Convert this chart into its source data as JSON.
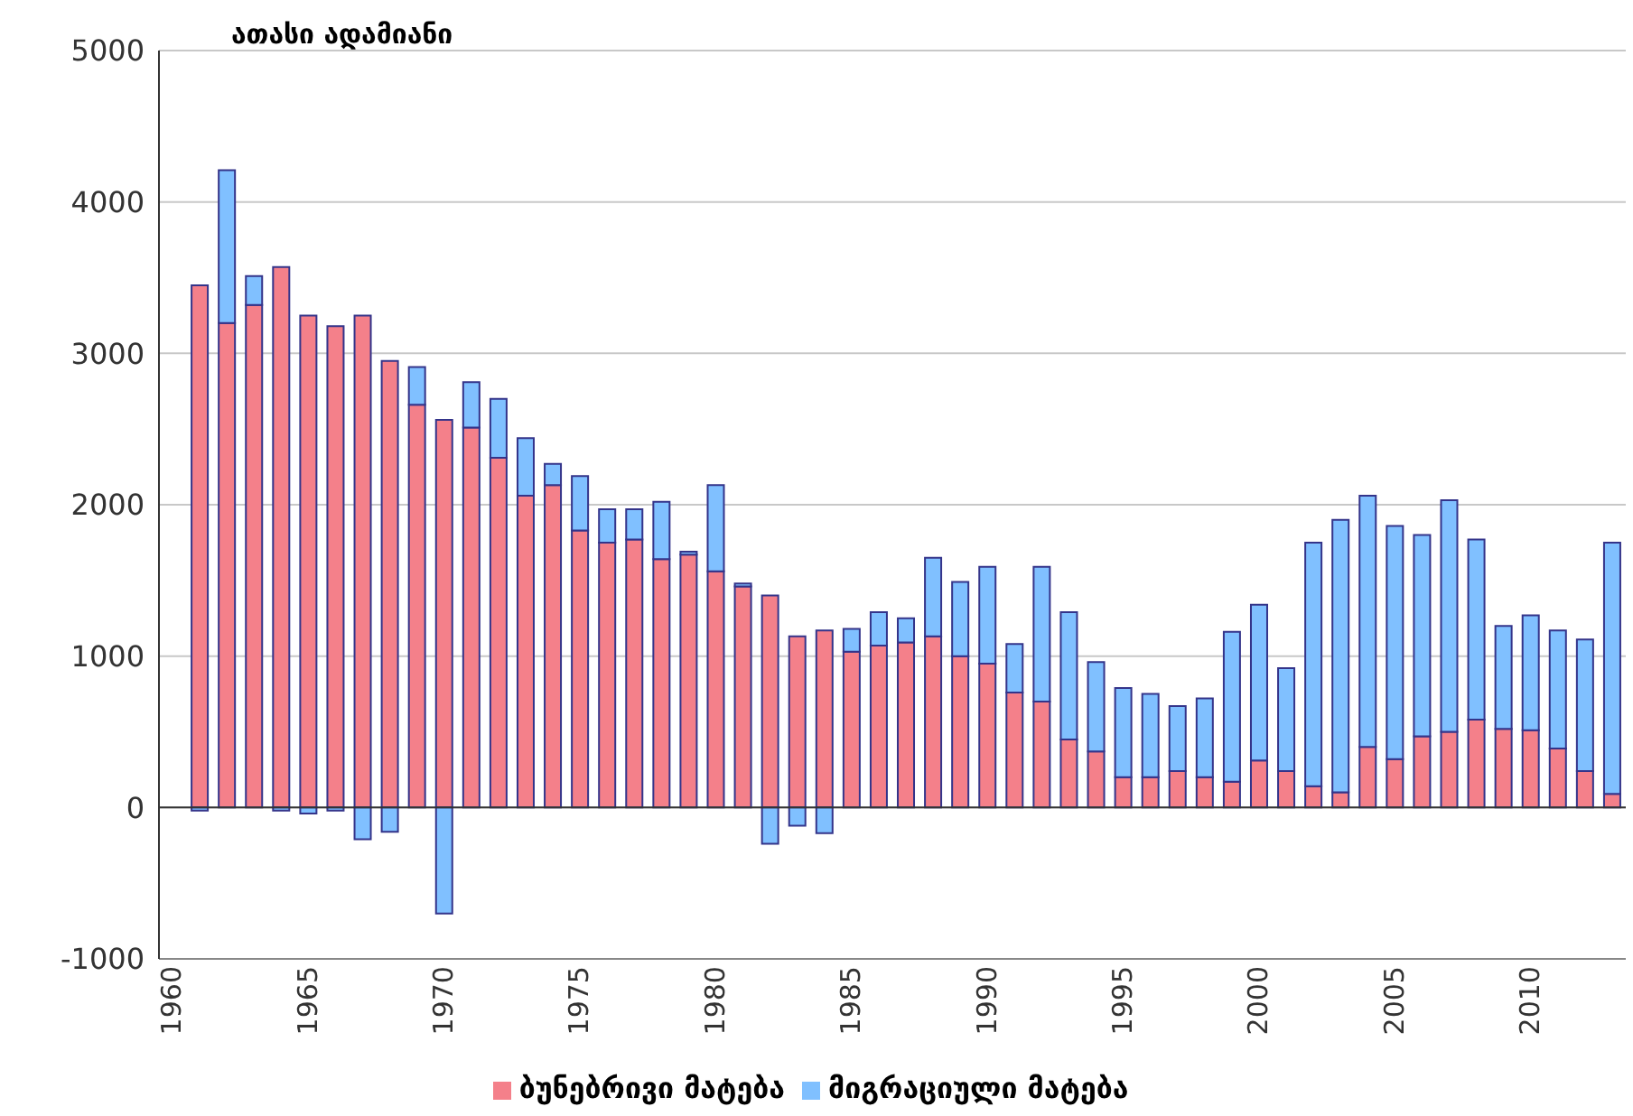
{
  "chart_data": {
    "type": "bar",
    "stacked": true,
    "ylabel": "ათასი ადამიანი",
    "categories": [
      "1960",
      null,
      null,
      null,
      null,
      "1965",
      null,
      null,
      null,
      null,
      "1970",
      null,
      null,
      null,
      null,
      "1975",
      null,
      null,
      null,
      null,
      "1980",
      null,
      null,
      null,
      null,
      "1985",
      null,
      null,
      null,
      null,
      "1990",
      null,
      null,
      null,
      null,
      "1995",
      null,
      null,
      null,
      null,
      "2000",
      null,
      null,
      null,
      null,
      "2005",
      null,
      null,
      null,
      null,
      "2010",
      null,
      null,
      null
    ],
    "series": [
      {
        "name": "ბუნებრივი მატება",
        "color": "#f4808a",
        "values": [
          null,
          3450,
          3200,
          3320,
          3570,
          3250,
          3180,
          3250,
          2950,
          2660,
          2560,
          2510,
          2310,
          2060,
          2130,
          1830,
          1750,
          1770,
          1640,
          1670,
          1560,
          1460,
          1400,
          1130,
          1170,
          1030,
          1070,
          1090,
          1130,
          1000,
          950,
          760,
          700,
          450,
          370,
          200,
          200,
          240,
          200,
          170,
          310,
          240,
          140,
          100,
          400,
          320,
          470,
          500,
          580,
          520,
          510,
          390,
          240,
          90
        ]
      },
      {
        "name": "მიგრაციული მატება",
        "color": "#80c0ff",
        "values": [
          null,
          -20,
          1010,
          190,
          -20,
          -40,
          -20,
          -210,
          -160,
          250,
          -700,
          300,
          390,
          380,
          140,
          360,
          220,
          200,
          380,
          20,
          570,
          20,
          -240,
          -120,
          -170,
          150,
          220,
          160,
          520,
          490,
          640,
          320,
          890,
          840,
          590,
          590,
          550,
          430,
          520,
          990,
          1030,
          680,
          1610,
          1800,
          1660,
          1540,
          1330,
          1530,
          1190,
          680,
          760,
          780,
          870,
          1660
        ]
      }
    ],
    "ylim": [
      -1000,
      5000
    ],
    "yticks": [
      -1000,
      0,
      1000,
      2000,
      3000,
      4000,
      5000
    ],
    "grid": "y",
    "legend": "bottom"
  }
}
